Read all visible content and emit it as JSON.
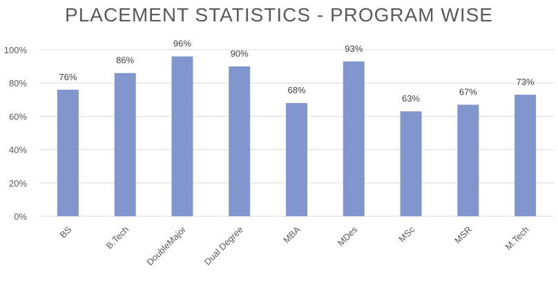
{
  "chart_data": {
    "type": "bar",
    "title": "PLACEMENT STATISTICS - PROGRAM WISE",
    "categories": [
      "BS",
      "B.Tech",
      "DoubleMajor",
      "Dual Degree",
      "MBA",
      "MDes",
      "MSc",
      "MSR",
      "M.Tech"
    ],
    "values": [
      76,
      86,
      96,
      90,
      68,
      93,
      63,
      67,
      73
    ],
    "data_labels": [
      "76%",
      "86%",
      "96%",
      "90%",
      "68%",
      "93%",
      "63%",
      "67%",
      "73%"
    ],
    "y_ticks": [
      "0%",
      "20%",
      "40%",
      "60%",
      "80%",
      "100%"
    ],
    "y_tick_values": [
      0,
      20,
      40,
      60,
      80,
      100
    ],
    "ylim": [
      0,
      100
    ],
    "xlabel": "",
    "ylabel": "",
    "grid": true,
    "bar_color": "#8096CC",
    "grid_color": "#D9D9D9"
  }
}
